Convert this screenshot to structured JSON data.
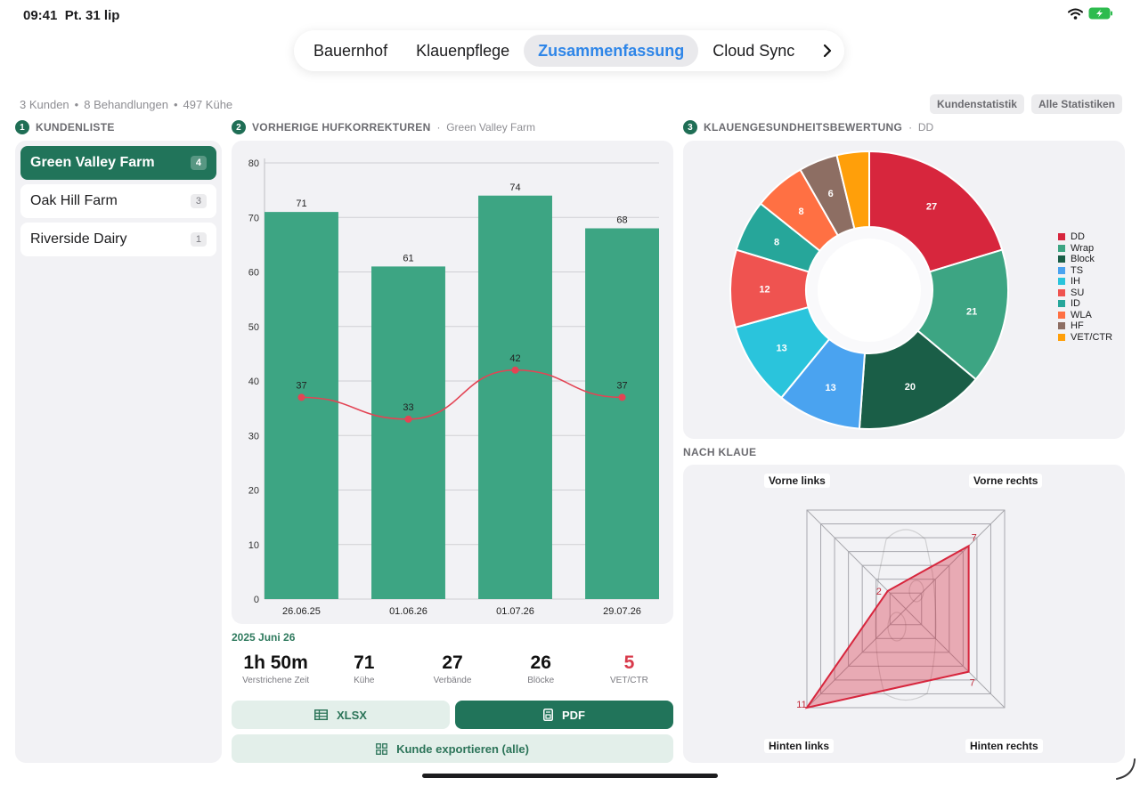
{
  "status": {
    "time": "09:41",
    "date": "Pt. 31 lip"
  },
  "tabs": [
    {
      "label": "Bauernhof",
      "active": false
    },
    {
      "label": "Klauenpflege",
      "active": false
    },
    {
      "label": "Zusammenfassung",
      "active": true
    },
    {
      "label": "Cloud Sync",
      "active": false
    }
  ],
  "summary": {
    "customers": "3 Kunden",
    "treatments": "8 Behandlungen",
    "cows": "497 Kühe"
  },
  "top_buttons": {
    "customer_stats": "Kundenstatistik",
    "all_stats": "Alle Statistiken"
  },
  "sections": {
    "customers": {
      "num": "1",
      "title": "KUNDENLISTE"
    },
    "previous": {
      "num": "2",
      "title": "VORHERIGE HUFKORREKTUREN",
      "sub": "Green Valley Farm"
    },
    "claw_health": {
      "num": "3",
      "title": "KLAUENGESUNDHEITSBEWERTUNG",
      "sub": "DD"
    },
    "by_claw": {
      "title": "NACH KLAUE"
    }
  },
  "customers": [
    {
      "name": "Green Valley Farm",
      "count": "4",
      "active": true
    },
    {
      "name": "Oak Hill Farm",
      "count": "3",
      "active": false
    },
    {
      "name": "Riverside Dairy",
      "count": "1",
      "active": false
    }
  ],
  "session": {
    "date": "2025 Juni 26",
    "stats": [
      {
        "value": "1h 50m",
        "label": "Verstrichene Zeit",
        "alert": false
      },
      {
        "value": "71",
        "label": "Kühe",
        "alert": false
      },
      {
        "value": "27",
        "label": "Verbände",
        "alert": false
      },
      {
        "value": "26",
        "label": "Blöcke",
        "alert": false
      },
      {
        "value": "5",
        "label": "VET/CTR",
        "alert": true
      }
    ]
  },
  "export": {
    "xlsx": "XLSX",
    "pdf": "PDF",
    "all": "Kunde exportieren (alle)"
  },
  "chart_data": [
    {
      "type": "bar",
      "categories": [
        "26.06.25",
        "01.06.26",
        "01.07.26",
        "29.07.26"
      ],
      "series": [
        {
          "values": [
            71,
            61,
            74,
            68
          ],
          "color": "#3da583"
        },
        {
          "type": "line",
          "values": [
            37,
            33,
            42,
            37
          ],
          "color": "#e34454"
        }
      ],
      "ylim": [
        0,
        80
      ],
      "yticks": [
        0,
        10,
        20,
        30,
        40,
        50,
        60,
        70,
        80
      ],
      "grid": true
    },
    {
      "type": "pie",
      "labels": [
        "DD",
        "Wrap",
        "Block",
        "TS",
        "IH",
        "SU",
        "ID",
        "WLA",
        "HF",
        "VET/CTR"
      ],
      "values": [
        27,
        21,
        20,
        13,
        13,
        12,
        8,
        8,
        6,
        5
      ],
      "shown_values": [
        "27",
        "21",
        "20",
        "13",
        "13",
        "12",
        "8",
        "8",
        "6",
        ""
      ],
      "colors": [
        "#d7263d",
        "#3da583",
        "#1a5e47",
        "#4aa3f0",
        "#2ac4dc",
        "#ef5350",
        "#26a69a",
        "#ff7043",
        "#8d6e63",
        "#ff9f0a"
      ],
      "legend": "right"
    },
    {
      "type": "radar",
      "axes": [
        "Vorne links",
        "Vorne rechts",
        "Hinten rechts",
        "Hinten links"
      ],
      "values": [
        2,
        7,
        7,
        11
      ],
      "shown_values": [
        "2",
        "7",
        "7",
        "11"
      ],
      "max": 11,
      "color": "#d7263d"
    }
  ]
}
